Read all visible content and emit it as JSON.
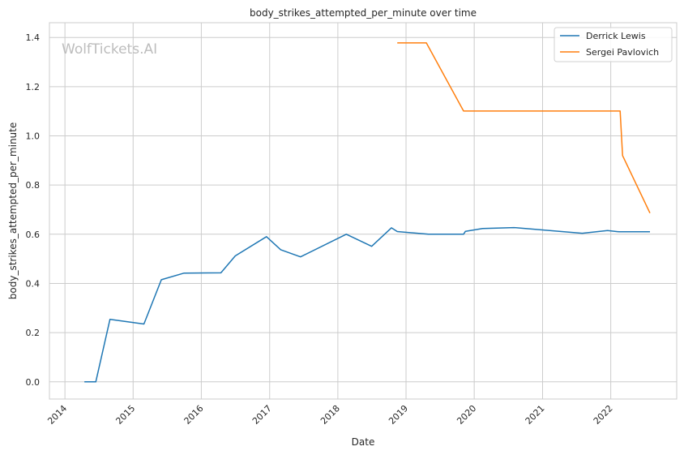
{
  "chart_data": {
    "type": "line",
    "title": "body_strikes_attempted_per_minute over time",
    "xlabel": "Date",
    "ylabel": "body_strikes_attempted_per_minute",
    "watermark": "WolfTickets.AI",
    "xlim": [
      "2013-10-10",
      "2022-12-20"
    ],
    "ylim": [
      -0.07,
      1.46
    ],
    "x_ticks": [
      "2014",
      "2015",
      "2016",
      "2017",
      "2018",
      "2019",
      "2020",
      "2021",
      "2022"
    ],
    "y_ticks": [
      "0.0",
      "0.2",
      "0.4",
      "0.6",
      "0.8",
      "1.0",
      "1.2",
      "1.4"
    ],
    "grid": true,
    "legend_position": "top-right",
    "series": [
      {
        "name": "Derrick Lewis",
        "color": "#1f77b4",
        "points": [
          [
            "2014-04-15",
            0.0
          ],
          [
            "2014-06-15",
            0.0
          ],
          [
            "2014-08-30",
            0.254
          ],
          [
            "2015-02-28",
            0.235
          ],
          [
            "2015-06-01",
            0.415
          ],
          [
            "2015-10-01",
            0.442
          ],
          [
            "2016-04-15",
            0.443
          ],
          [
            "2016-07-01",
            0.512
          ],
          [
            "2016-12-15",
            0.59
          ],
          [
            "2017-03-01",
            0.537
          ],
          [
            "2017-06-15",
            0.508
          ],
          [
            "2018-02-15",
            0.6
          ],
          [
            "2018-07-01",
            0.551
          ],
          [
            "2018-10-15",
            0.626
          ],
          [
            "2018-11-15",
            0.611
          ],
          [
            "2019-05-01",
            0.6
          ],
          [
            "2019-11-05",
            0.6
          ],
          [
            "2019-11-15",
            0.612
          ],
          [
            "2020-02-15",
            0.623
          ],
          [
            "2020-08-01",
            0.627
          ],
          [
            "2021-08-01",
            0.604
          ],
          [
            "2021-12-15",
            0.615
          ],
          [
            "2022-02-15",
            0.61
          ],
          [
            "2022-07-30",
            0.61
          ]
        ]
      },
      {
        "name": "Sergei Pavlovich",
        "color": "#ff7f0e",
        "points": [
          [
            "2018-11-15",
            1.378
          ],
          [
            "2019-04-20",
            1.378
          ],
          [
            "2019-11-05",
            1.101
          ],
          [
            "2022-02-20",
            1.101
          ],
          [
            "2022-03-05",
            0.92
          ],
          [
            "2022-07-30",
            0.686
          ]
        ]
      }
    ]
  }
}
